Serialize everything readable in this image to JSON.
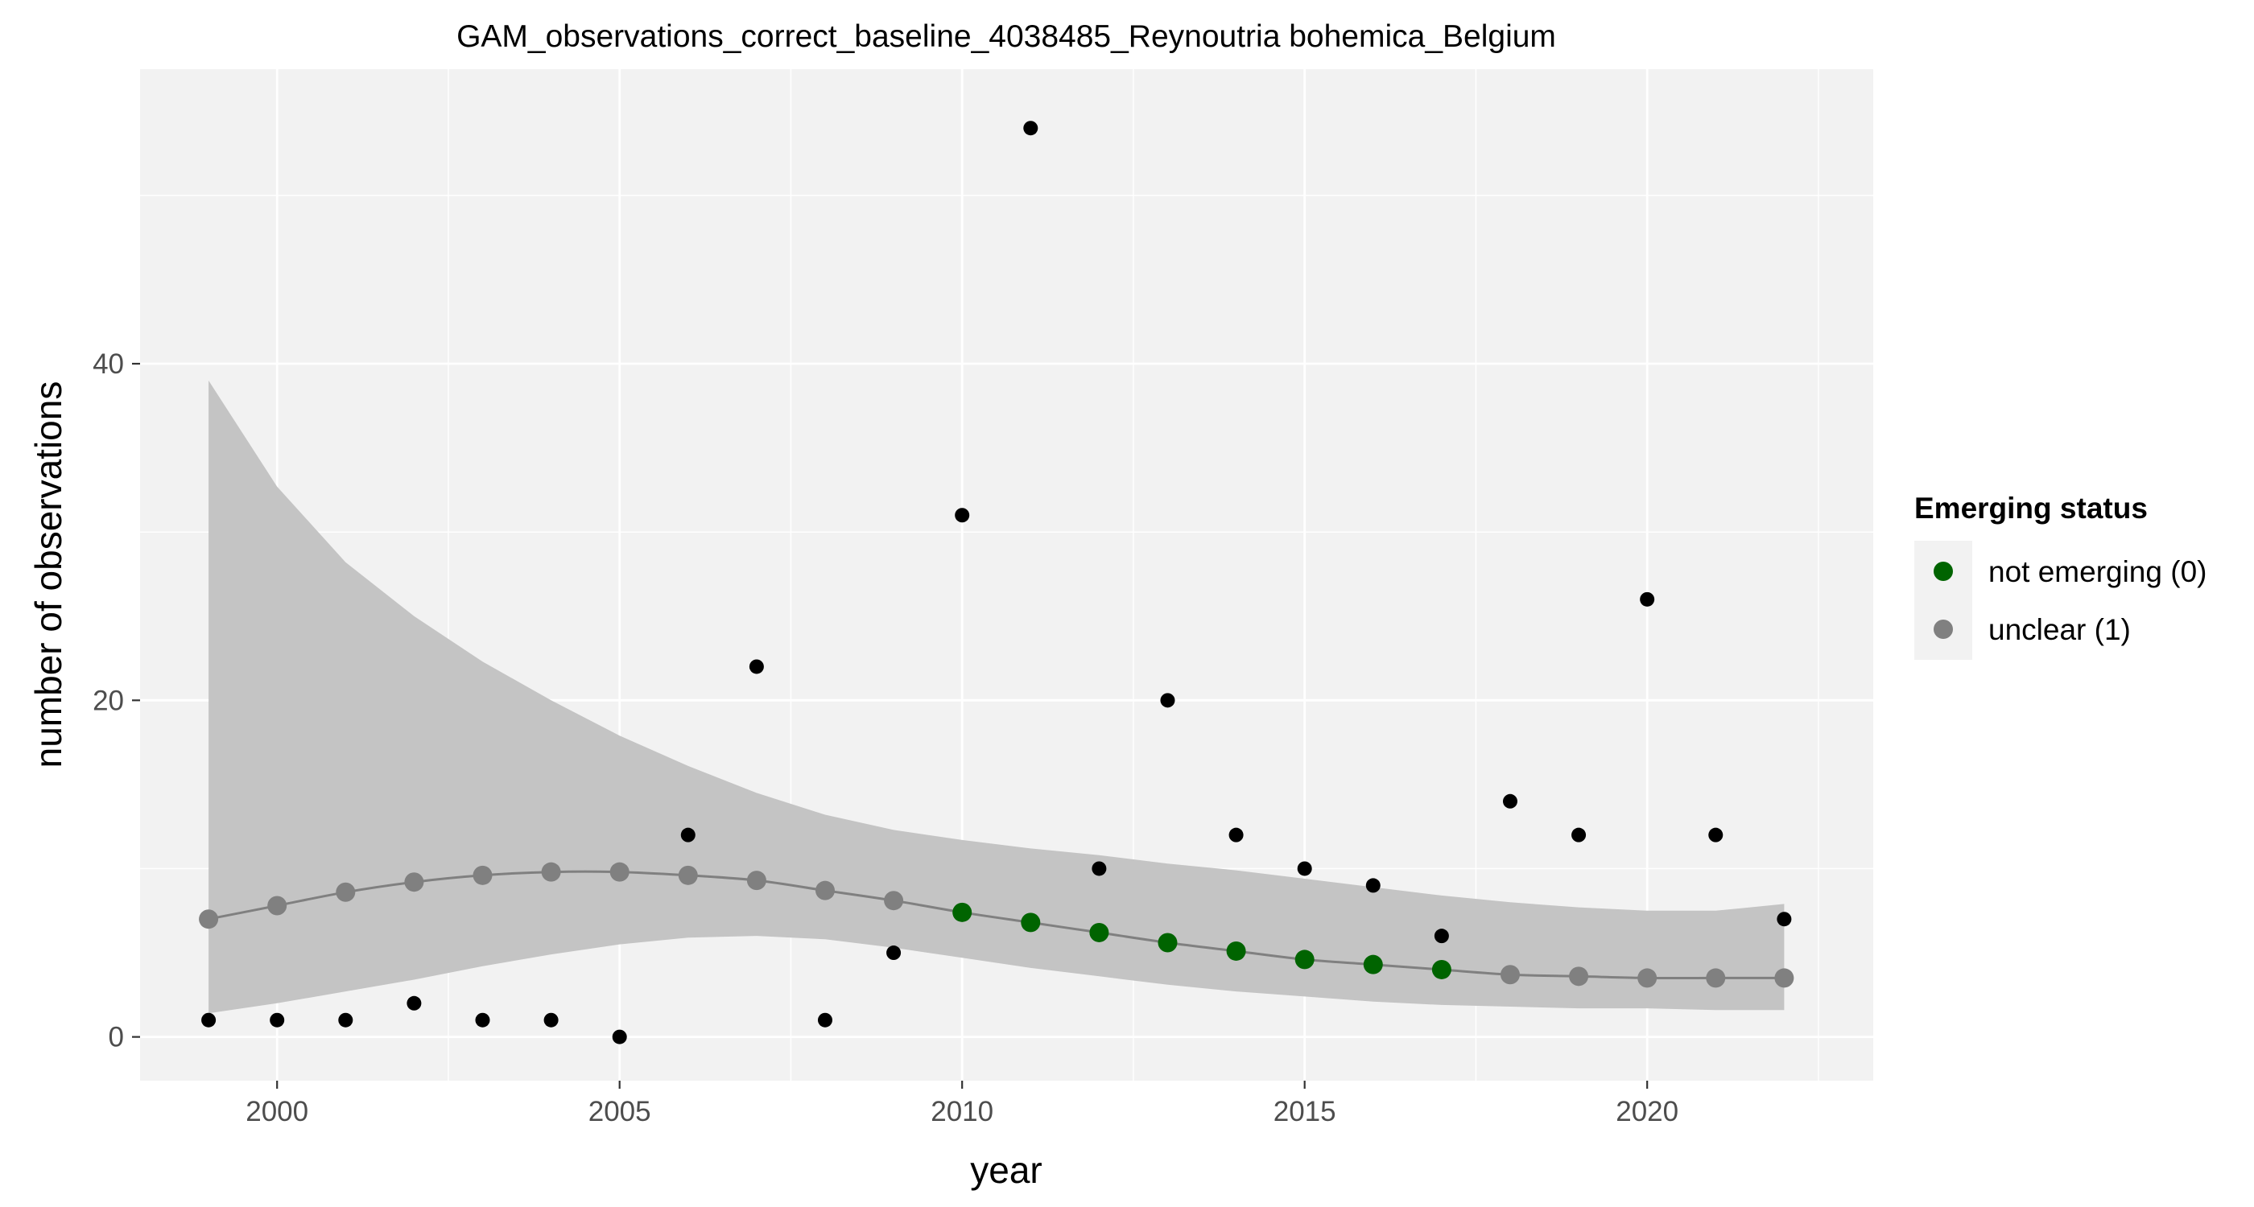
{
  "chart_data": {
    "type": "scatter",
    "title": "GAM_observations_correct_baseline_4038485_Reynoutria bohemica_Belgium",
    "xlabel": "year",
    "ylabel": "number of observations",
    "xlim": [
      1998,
      2023.3
    ],
    "ylim": [
      -2.6,
      57.5
    ],
    "x_ticks": [
      2000,
      2005,
      2010,
      2015,
      2020
    ],
    "y_ticks": [
      0,
      20,
      40
    ],
    "grid": true,
    "legend_position": "right",
    "legend_title": "Emerging status",
    "observed": {
      "x": [
        1999,
        2000,
        2001,
        2002,
        2003,
        2004,
        2005,
        2006,
        2007,
        2008,
        2009,
        2010,
        2011,
        2012,
        2013,
        2014,
        2015,
        2016,
        2017,
        2018,
        2019,
        2020,
        2021,
        2022
      ],
      "y": [
        1,
        1,
        1,
        2,
        1,
        1,
        0,
        12,
        22,
        1,
        5,
        31,
        54,
        10,
        20,
        12,
        10,
        9,
        6,
        14,
        12,
        26,
        12,
        7
      ]
    },
    "fit": {
      "x": [
        1999,
        2000,
        2001,
        2002,
        2003,
        2004,
        2005,
        2006,
        2007,
        2008,
        2009,
        2010,
        2011,
        2012,
        2013,
        2014,
        2015,
        2016,
        2017,
        2018,
        2019,
        2020,
        2021,
        2022
      ],
      "y": [
        7.0,
        7.8,
        8.6,
        9.2,
        9.6,
        9.8,
        9.8,
        9.6,
        9.3,
        8.7,
        8.1,
        7.4,
        6.8,
        6.2,
        5.6,
        5.1,
        4.6,
        4.3,
        4.0,
        3.7,
        3.6,
        3.5,
        3.5,
        3.5
      ],
      "lower": [
        1.4,
        2.0,
        2.7,
        3.4,
        4.2,
        4.9,
        5.5,
        5.9,
        6.0,
        5.8,
        5.3,
        4.7,
        4.1,
        3.6,
        3.1,
        2.7,
        2.4,
        2.1,
        1.9,
        1.8,
        1.7,
        1.7,
        1.6,
        1.6
      ],
      "upper": [
        39.0,
        32.7,
        28.2,
        25.0,
        22.3,
        20.0,
        17.9,
        16.1,
        14.5,
        13.2,
        12.3,
        11.7,
        11.2,
        10.8,
        10.3,
        9.9,
        9.4,
        8.9,
        8.4,
        8.0,
        7.7,
        7.5,
        7.5,
        7.9
      ],
      "status": [
        "unclear",
        "unclear",
        "unclear",
        "unclear",
        "unclear",
        "unclear",
        "unclear",
        "unclear",
        "unclear",
        "unclear",
        "unclear",
        "not",
        "not",
        "not",
        "not",
        "not",
        "not",
        "not",
        "not",
        "unclear",
        "unclear",
        "unclear",
        "unclear",
        "unclear"
      ]
    },
    "legend": [
      {
        "key": "not",
        "label": "not emerging (0)",
        "color": "#006400"
      },
      {
        "key": "unclear",
        "label": "unclear (1)",
        "color": "#808080"
      }
    ],
    "colors": {
      "panel": "#f2f2f2",
      "grid": "#ffffff",
      "ribbon": "#c4c4c4",
      "fit_line": "#808080",
      "observed_point": "#000000"
    }
  }
}
